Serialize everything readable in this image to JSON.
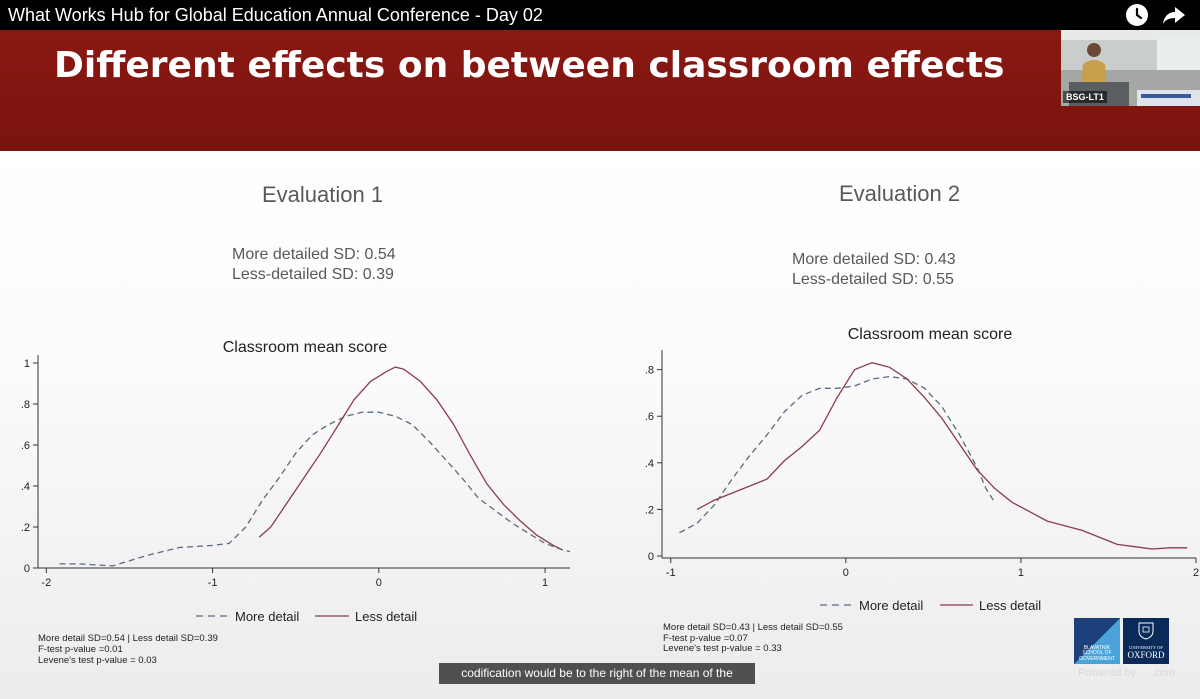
{
  "player": {
    "title": "What Works Hub for Global Education Annual Conference - Day 02",
    "watch_later_icon": "clock-icon",
    "share_icon": "share-arrow-icon",
    "caption": "codification would be to the right of the mean of the",
    "pip_label": "BSG-LT1"
  },
  "slide": {
    "title": "Different effects on between classroom effects",
    "banner_color": "#7d140f",
    "footer": {
      "bsg_logo_text": [
        "BLAVATNIK",
        "SCHOOL OF",
        "GOVERNMENT"
      ],
      "oxford_logo_text": [
        "UNIVERSITY OF",
        "OXFORD"
      ],
      "powered_text": "Powered by ... .com"
    }
  },
  "panels": [
    {
      "title": "Evaluation 1",
      "sd_more": "More detailed SD: 0.54",
      "sd_less": "Less-detailed SD: 0.39",
      "stats": [
        "More detail SD=0.54 | Less detail SD=0.39",
        "F-test p-value =0.01",
        "Levene's test p-value = 0.03"
      ]
    },
    {
      "title": "Evaluation 2",
      "sd_more": "More detailed SD: 0.43",
      "sd_less": "Less-detailed SD: 0.55",
      "stats": [
        "More detail SD=0.43 | Less detail SD=0.55",
        "F-test p-value =0.07",
        "Levene's test p-value = 0.33"
      ]
    }
  ],
  "chart_data": [
    {
      "type": "line",
      "title": "Classroom mean score",
      "xlabel": "",
      "ylabel": "",
      "xlim": [
        -2.05,
        1.15
      ],
      "ylim": [
        0,
        1
      ],
      "x_ticks": [
        -2,
        -1,
        0,
        1
      ],
      "x_tick_labels": [
        "-2",
        "-1",
        "0",
        "1"
      ],
      "y_ticks": [
        0,
        0.2,
        0.4,
        0.6,
        0.8,
        1
      ],
      "y_tick_labels": [
        "0",
        ".2",
        ".4",
        ".6",
        ".8",
        "1"
      ],
      "grid": false,
      "legend": "bottom",
      "series": [
        {
          "name": "More detail",
          "style": "dashed",
          "color": "#5a6a82",
          "x": [
            -1.92,
            -1.8,
            -1.6,
            -1.4,
            -1.2,
            -1.0,
            -0.9,
            -0.8,
            -0.7,
            -0.6,
            -0.5,
            -0.4,
            -0.3,
            -0.2,
            -0.1,
            0.0,
            0.1,
            0.2,
            0.3,
            0.4,
            0.5,
            0.6,
            0.7,
            0.8,
            0.9,
            1.0,
            1.1,
            1.15
          ],
          "y": [
            0.02,
            0.02,
            0.01,
            0.06,
            0.1,
            0.11,
            0.12,
            0.2,
            0.33,
            0.44,
            0.56,
            0.65,
            0.7,
            0.74,
            0.76,
            0.76,
            0.74,
            0.7,
            0.62,
            0.53,
            0.44,
            0.34,
            0.28,
            0.22,
            0.17,
            0.12,
            0.09,
            0.08
          ]
        },
        {
          "name": "Less detail",
          "style": "solid",
          "color": "#8a3d4c",
          "x": [
            -0.72,
            -0.65,
            -0.55,
            -0.45,
            -0.35,
            -0.25,
            -0.15,
            -0.05,
            0.05,
            0.1,
            0.15,
            0.25,
            0.35,
            0.45,
            0.55,
            0.65,
            0.75,
            0.85,
            0.95,
            1.05,
            1.1
          ],
          "y": [
            0.15,
            0.2,
            0.32,
            0.44,
            0.56,
            0.69,
            0.82,
            0.91,
            0.96,
            0.98,
            0.97,
            0.91,
            0.82,
            0.7,
            0.55,
            0.41,
            0.31,
            0.23,
            0.16,
            0.11,
            0.09
          ]
        }
      ]
    },
    {
      "type": "line",
      "title": "Classroom mean score",
      "xlabel": "",
      "ylabel": "",
      "xlim": [
        -1.05,
        2.0
      ],
      "ylim": [
        0,
        0.85
      ],
      "x_ticks": [
        -1,
        0,
        1,
        2
      ],
      "x_tick_labels": [
        "-1",
        "0",
        "1",
        "2"
      ],
      "y_ticks": [
        0,
        0.2,
        0.4,
        0.6,
        0.8
      ],
      "y_tick_labels": [
        "0",
        ".2",
        ".4",
        ".6",
        ".8"
      ],
      "grid": false,
      "legend": "bottom",
      "series": [
        {
          "name": "More detail",
          "style": "dashed",
          "color": "#5a6a82",
          "x": [
            -0.95,
            -0.85,
            -0.75,
            -0.65,
            -0.55,
            -0.45,
            -0.35,
            -0.25,
            -0.15,
            -0.05,
            0.05,
            0.15,
            0.25,
            0.35,
            0.45,
            0.55,
            0.65,
            0.75,
            0.8,
            0.85
          ],
          "y": [
            0.1,
            0.14,
            0.22,
            0.33,
            0.43,
            0.52,
            0.62,
            0.69,
            0.72,
            0.72,
            0.73,
            0.76,
            0.77,
            0.76,
            0.72,
            0.64,
            0.52,
            0.38,
            0.29,
            0.23
          ]
        },
        {
          "name": "Less detail",
          "style": "solid",
          "color": "#8a3d4c",
          "x": [
            -0.85,
            -0.75,
            -0.65,
            -0.55,
            -0.45,
            -0.35,
            -0.25,
            -0.15,
            -0.05,
            0.05,
            0.15,
            0.25,
            0.35,
            0.45,
            0.55,
            0.65,
            0.75,
            0.85,
            0.95,
            1.05,
            1.15,
            1.25,
            1.35,
            1.45,
            1.55,
            1.65,
            1.75,
            1.85,
            1.95
          ],
          "y": [
            0.2,
            0.24,
            0.27,
            0.3,
            0.33,
            0.41,
            0.47,
            0.54,
            0.68,
            0.8,
            0.83,
            0.81,
            0.76,
            0.68,
            0.59,
            0.48,
            0.37,
            0.29,
            0.23,
            0.19,
            0.15,
            0.13,
            0.11,
            0.08,
            0.05,
            0.04,
            0.03,
            0.035,
            0.035
          ]
        }
      ]
    }
  ]
}
